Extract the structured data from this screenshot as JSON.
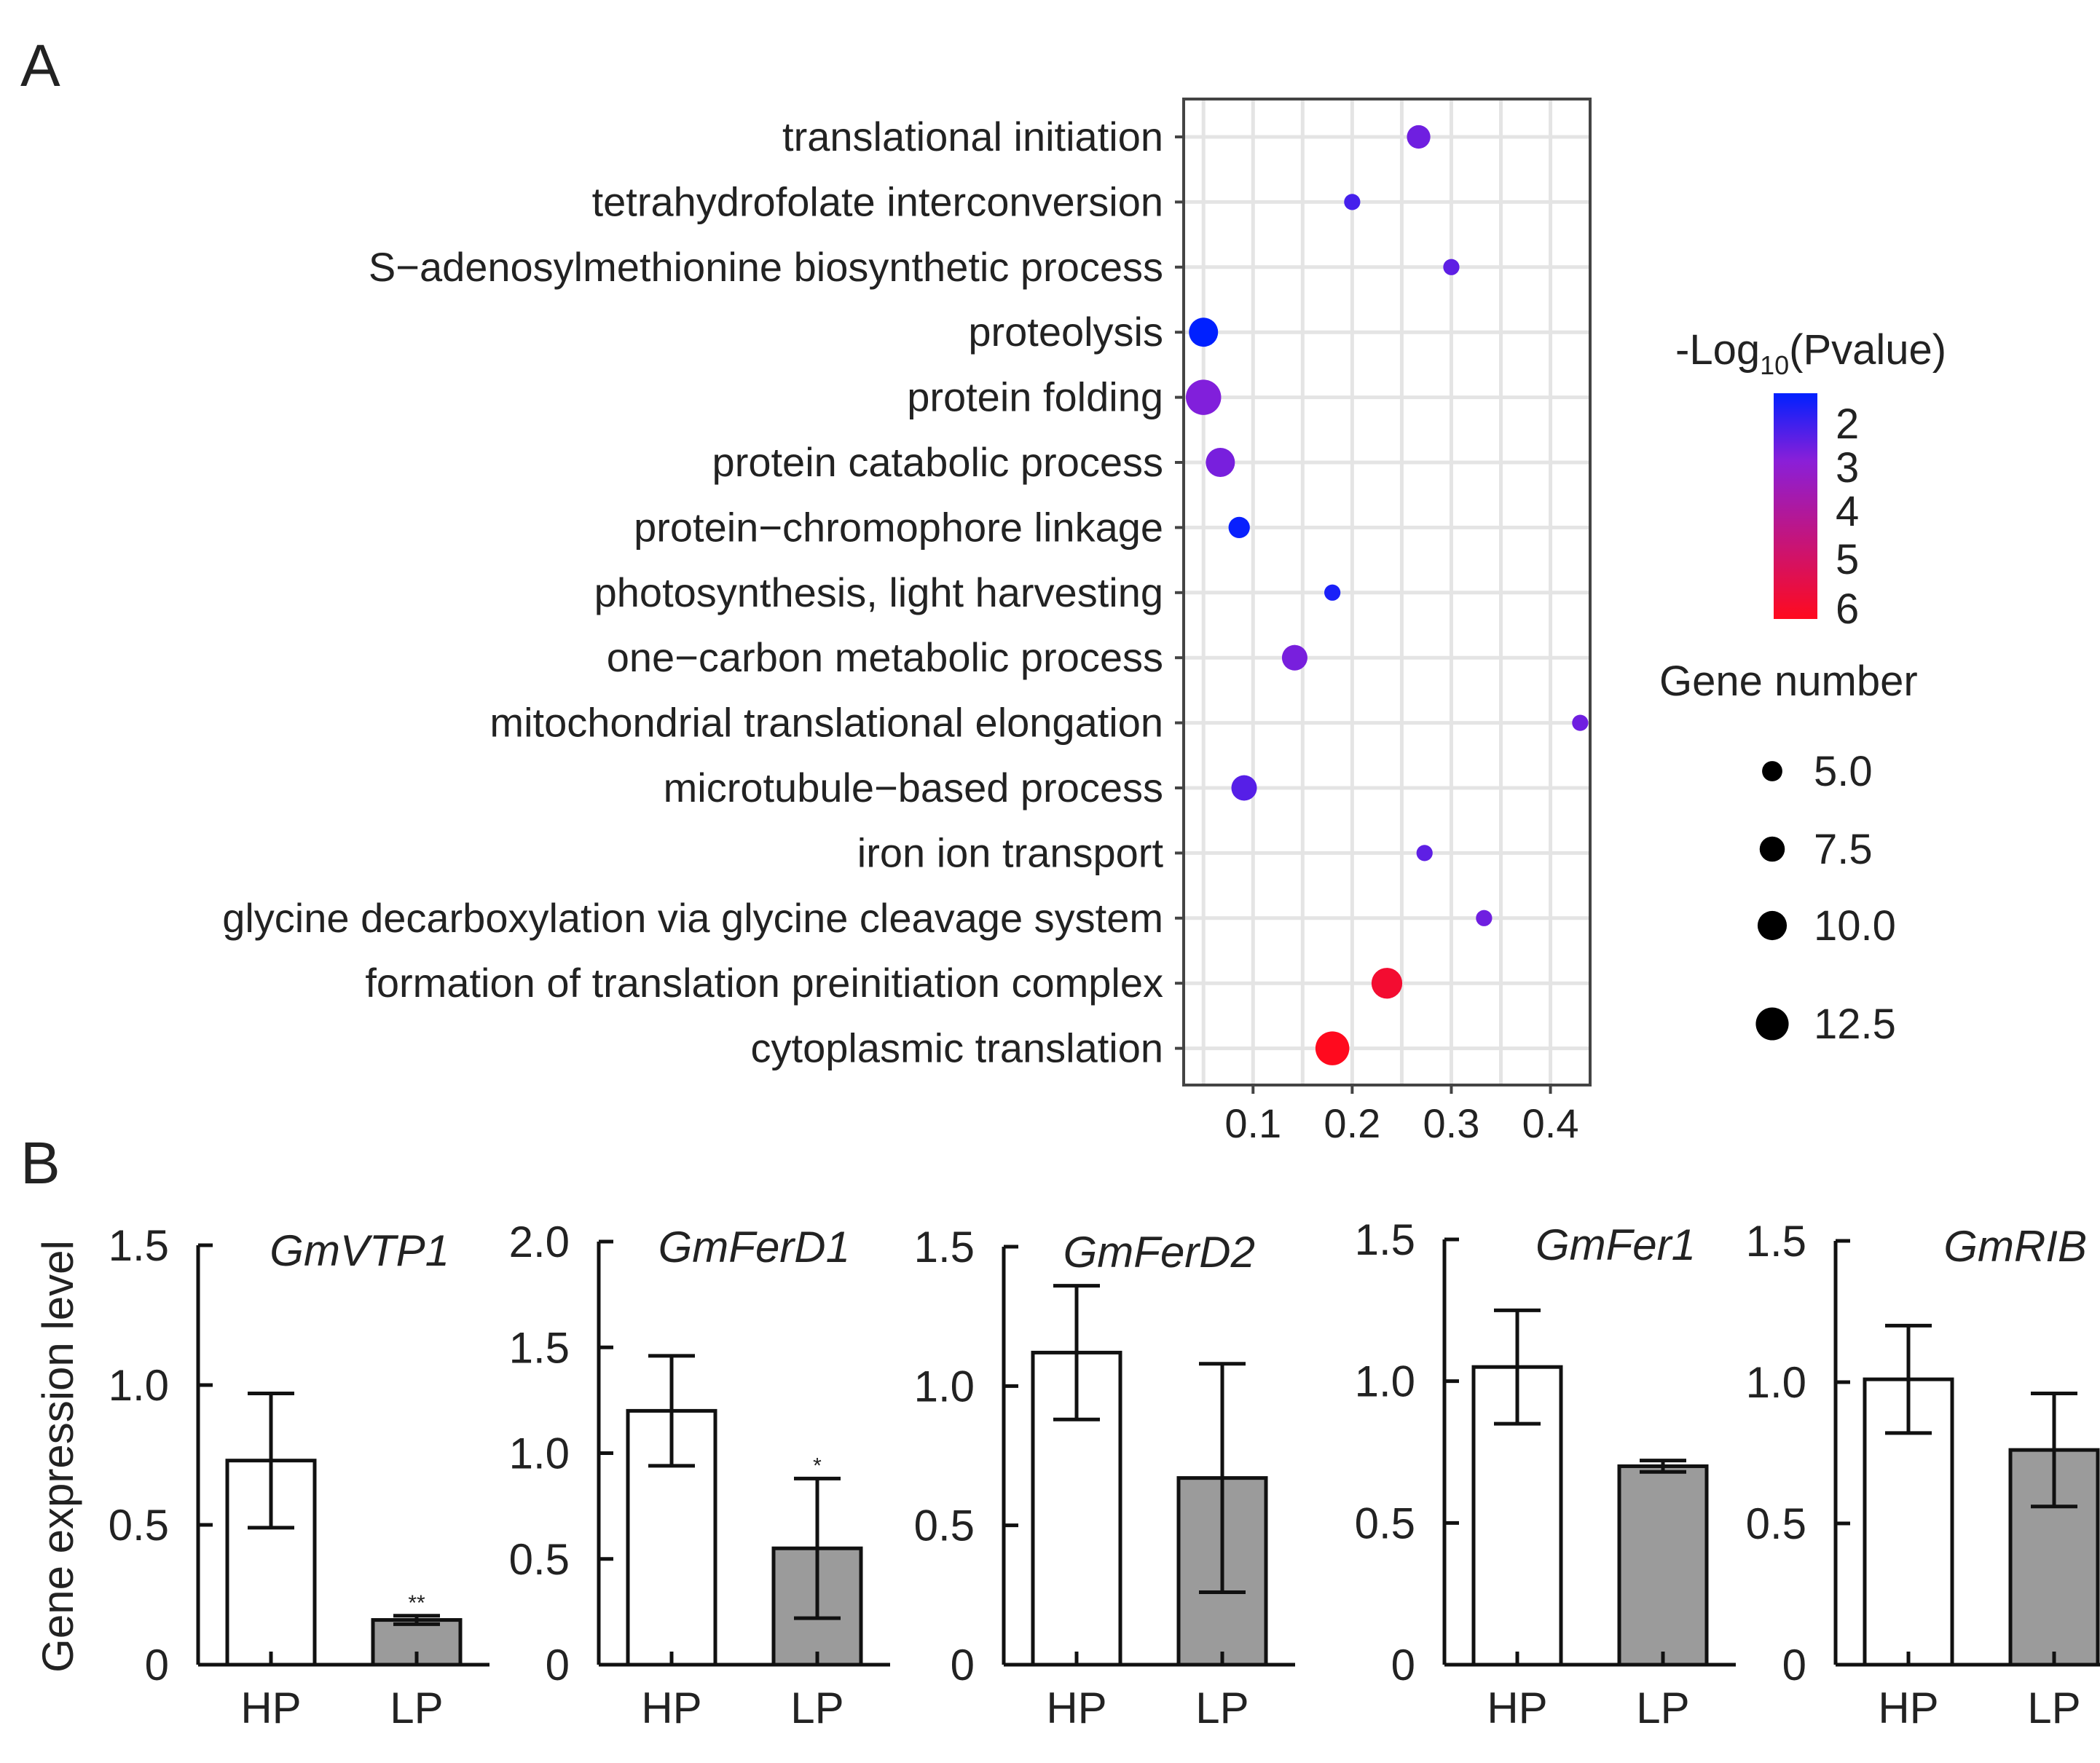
{
  "panel_labels": {
    "a": "A",
    "b": "B"
  },
  "chart_data": [
    {
      "type": "scatter",
      "subtype": "bubble",
      "panel": "A",
      "title": "",
      "xlabel": "",
      "ylabel": "",
      "xlim": [
        0.03,
        0.44
      ],
      "xticks": [
        0.1,
        0.2,
        0.3,
        0.4
      ],
      "xtick_labels": [
        "0.1",
        "0.2",
        "0.3",
        "0.4"
      ],
      "grid": true,
      "categories": [
        "translational initiation",
        "tetrahydrofolate interconversion",
        "S−adenosylmethionine biosynthetic process",
        "proteolysis",
        "protein folding",
        "protein catabolic process",
        "protein−chromophore linkage",
        "photosynthesis, light harvesting",
        "one−carbon metabolic process",
        "mitochondrial translational elongation",
        "microtubule−based process",
        "iron ion transport",
        "glycine decarboxylation via glycine cleavage system",
        "formation of translation preinitiation complex",
        "cytoplasmic translation"
      ],
      "x": [
        0.267,
        0.2,
        0.3,
        0.05,
        0.05,
        0.067,
        0.086,
        0.18,
        0.142,
        0.43,
        0.091,
        0.273,
        0.333,
        0.235,
        0.18
      ],
      "gene_number": [
        6,
        3,
        3,
        9,
        13,
        9,
        5,
        3,
        7,
        3,
        7,
        3,
        3,
        10,
        12
      ],
      "neg_log10_pvalue": [
        3.0,
        2.5,
        2.8,
        1.7,
        3.2,
        3.1,
        1.8,
        2.0,
        3.1,
        3.0,
        2.7,
        2.8,
        3.0,
        6.0,
        6.3
      ],
      "color_legend": {
        "title_prefix": "-Log",
        "title_sub": "10",
        "title_suffix": "(Pvalue)",
        "ticks": [
          "2",
          "3",
          "4",
          "5",
          "6"
        ],
        "low_color": "#0020ff",
        "mid_color": "#8a1fd8",
        "high_color": "#ff0a1e",
        "range": [
          1.7,
          6.3
        ]
      },
      "size_legend": {
        "title": "Gene number",
        "labels": [
          "5.0",
          "7.5",
          "10.0",
          "12.5"
        ],
        "values": [
          5.0,
          7.5,
          10.0,
          12.5
        ]
      }
    },
    {
      "type": "bar",
      "panel": "B",
      "title": "GmVTP1",
      "ylabel": "Gene expression level",
      "categories": [
        "HP",
        "LP"
      ],
      "values": [
        0.73,
        0.16
      ],
      "errors": [
        0.24,
        0.015
      ],
      "significance": [
        "",
        "**"
      ],
      "ylim": [
        0,
        1.5
      ],
      "yticks": [
        0,
        0.5,
        1.0,
        1.5
      ],
      "ytick_labels": [
        "0",
        "0.5",
        "1.0",
        "1.5"
      ]
    },
    {
      "type": "bar",
      "panel": "B",
      "title": "GmFerD1",
      "ylabel": "",
      "categories": [
        "HP",
        "LP"
      ],
      "values": [
        1.2,
        0.55
      ],
      "errors": [
        0.26,
        0.33
      ],
      "significance": [
        "",
        "*"
      ],
      "ylim": [
        0,
        2.0
      ],
      "yticks": [
        0,
        0.5,
        1.0,
        1.5,
        2.0
      ],
      "ytick_labels": [
        "0",
        "0.5",
        "1.0",
        "1.5",
        "2.0"
      ]
    },
    {
      "type": "bar",
      "panel": "B",
      "title": "GmFerD2",
      "ylabel": "",
      "categories": [
        "HP",
        "LP"
      ],
      "values": [
        1.12,
        0.67
      ],
      "errors": [
        0.24,
        0.41
      ],
      "significance": [
        "",
        ""
      ],
      "ylim": [
        0,
        1.5
      ],
      "yticks": [
        0,
        0.5,
        1.0,
        1.5
      ],
      "ytick_labels": [
        "0",
        "0.5",
        "1.0",
        "1.5"
      ]
    },
    {
      "type": "bar",
      "panel": "B",
      "title": "GmFer1",
      "ylabel": "",
      "categories": [
        "HP",
        "LP"
      ],
      "values": [
        1.05,
        0.7
      ],
      "errors": [
        0.2,
        0.02
      ],
      "significance": [
        "",
        ""
      ],
      "ylim": [
        0,
        1.5
      ],
      "yticks": [
        0,
        0.5,
        1.0,
        1.5
      ],
      "ytick_labels": [
        "0",
        "0.5",
        "1.0",
        "1.5"
      ]
    },
    {
      "type": "bar",
      "panel": "B",
      "title": "GmRIB",
      "ylabel": "",
      "categories": [
        "HP",
        "LP"
      ],
      "values": [
        1.01,
        0.76
      ],
      "errors": [
        0.19,
        0.2
      ],
      "significance": [
        "",
        ""
      ],
      "ylim": [
        0,
        1.5
      ],
      "yticks": [
        0,
        0.5,
        1.0,
        1.5
      ],
      "ytick_labels": [
        "0",
        "0.5",
        "1.0",
        "1.5"
      ]
    }
  ]
}
